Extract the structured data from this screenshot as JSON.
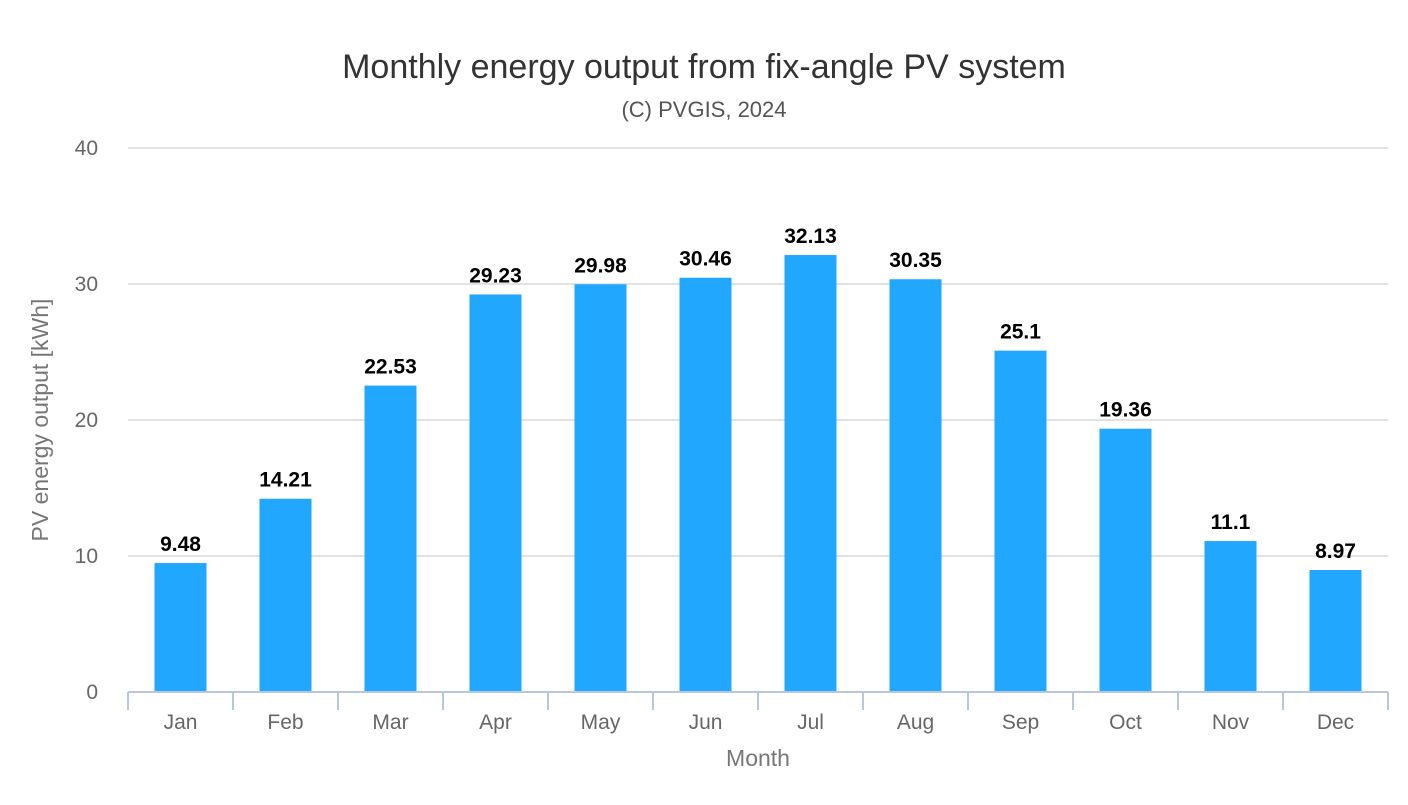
{
  "chart_data": {
    "type": "bar",
    "title": "Monthly energy output from fix-angle PV system",
    "subtitle": "(C) PVGIS, 2024",
    "xlabel": "Month",
    "ylabel": "PV energy output [kWh]",
    "categories": [
      "Jan",
      "Feb",
      "Mar",
      "Apr",
      "May",
      "Jun",
      "Jul",
      "Aug",
      "Sep",
      "Oct",
      "Nov",
      "Dec"
    ],
    "values": [
      9.48,
      14.21,
      22.53,
      29.23,
      29.98,
      30.46,
      32.13,
      30.35,
      25.1,
      19.36,
      11.1,
      8.97
    ],
    "data_labels": [
      "9.48",
      "14.21",
      "22.53",
      "29.23",
      "29.98",
      "30.46",
      "32.13",
      "30.35",
      "25.1",
      "19.36",
      "11.1",
      "8.97"
    ],
    "ylim": [
      0,
      40
    ],
    "yticks": [
      0,
      10,
      20,
      30,
      40
    ],
    "ytick_labels": [
      "0",
      "10",
      "20",
      "30",
      "40"
    ],
    "grid": true,
    "legend": "none",
    "colors": {
      "bar": "#22a7fe",
      "grid": "#d9d9d9",
      "axis": "#b8c8dc"
    }
  }
}
